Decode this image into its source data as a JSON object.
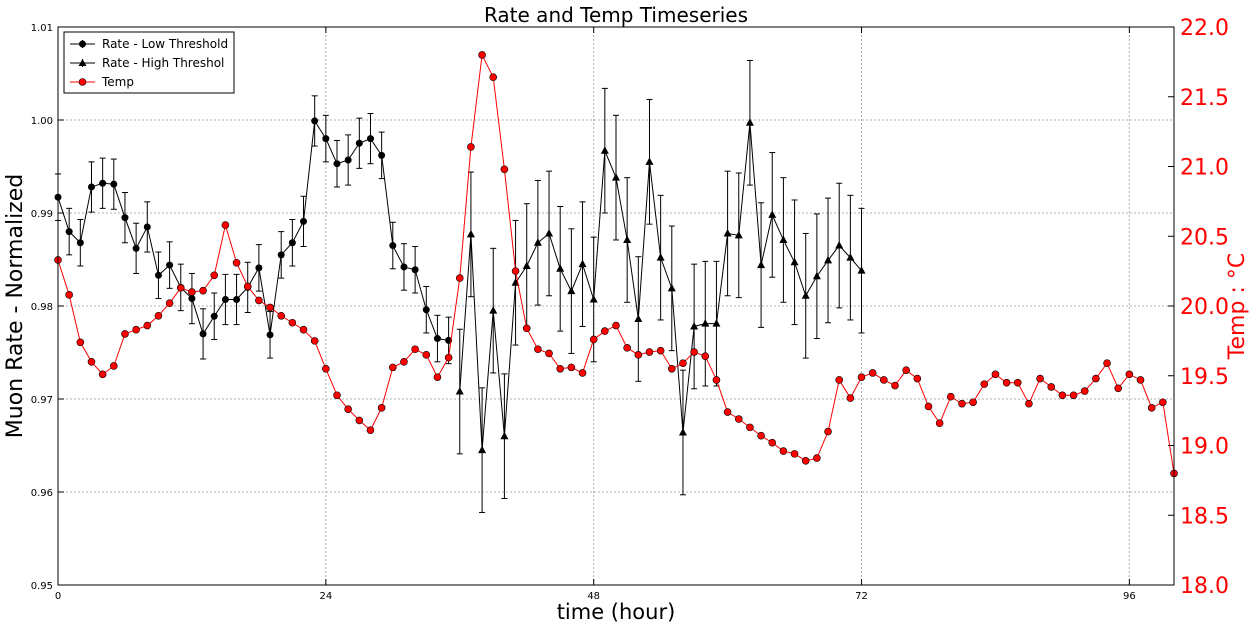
{
  "chart_data": {
    "type": "line",
    "title": "Rate and Temp Timeseries",
    "xlabel": "time (hour)",
    "ylabel": "Muon Rate - Normalized",
    "y2label": "Temp : °C",
    "xlim": [
      0,
      100
    ],
    "ylim": [
      0.95,
      1.01
    ],
    "y2lim": [
      18.0,
      22.0
    ],
    "xticks": [
      0,
      24,
      48,
      72,
      96
    ],
    "yticks": [
      0.95,
      0.96,
      0.97,
      0.98,
      0.99,
      1.0,
      1.01
    ],
    "yticks_labels": [
      "0.95",
      "0.96",
      "0.97",
      "0.98",
      "0.99",
      "1.00",
      "1.01"
    ],
    "y2ticks": [
      18.0,
      18.5,
      19.0,
      19.5,
      20.0,
      20.5,
      21.0,
      21.5,
      22.0
    ],
    "y2ticks_labels": [
      "18.0",
      "18.5",
      "19.0",
      "19.5",
      "20.0",
      "20.5",
      "21.0",
      "21.5",
      "22.0"
    ],
    "grid": true,
    "legend_position": "top-left",
    "colors": {
      "rate": "#000000",
      "temp": "#ff0000"
    },
    "series": [
      {
        "name": "Rate - Low Threshold",
        "axis": "left",
        "marker": "circle",
        "x": [
          0,
          1,
          2,
          3,
          4,
          5,
          6,
          7,
          8,
          9,
          10,
          11,
          12,
          13,
          14,
          15,
          16,
          17,
          18,
          19,
          20,
          21,
          22,
          23,
          24,
          25,
          26,
          27,
          28,
          29,
          30,
          31,
          32,
          33,
          34,
          35
        ],
        "y": [
          0.9917,
          0.988,
          0.9868,
          0.9928,
          0.9932,
          0.9931,
          0.9895,
          0.9862,
          0.9885,
          0.9833,
          0.9844,
          0.982,
          0.9808,
          0.977,
          0.9789,
          0.9807,
          0.9807,
          0.982,
          0.9841,
          0.9769,
          0.9855,
          0.9868,
          0.9891,
          0.9999,
          0.998,
          0.9953,
          0.9957,
          0.9975,
          0.998,
          0.9962,
          0.9865,
          0.9842,
          0.9839,
          0.9796,
          0.9765,
          0.9763
        ],
        "err": [
          0.0025,
          0.0025,
          0.0025,
          0.0027,
          0.0027,
          0.0027,
          0.0027,
          0.0027,
          0.0027,
          0.0025,
          0.0025,
          0.0025,
          0.0027,
          0.0027,
          0.0025,
          0.0027,
          0.0027,
          0.0027,
          0.0025,
          0.0025,
          0.0025,
          0.0025,
          0.0027,
          0.0027,
          0.0025,
          0.0025,
          0.0027,
          0.0027,
          0.0027,
          0.0025,
          0.0025,
          0.0025,
          0.0025,
          0.0025,
          0.0025,
          0.0025
        ]
      },
      {
        "name": "Rate - High Threshol",
        "axis": "left",
        "marker": "triangle",
        "x": [
          36,
          37,
          38,
          39,
          40,
          41,
          42,
          43,
          44,
          45,
          46,
          47,
          48,
          49,
          50,
          51,
          52,
          53,
          54,
          55,
          56,
          57,
          58,
          59,
          60,
          61,
          62,
          63,
          64,
          65,
          66,
          67,
          68,
          69,
          70,
          71,
          72
        ],
        "y": [
          0.9708,
          0.9877,
          0.9645,
          0.9795,
          0.966,
          0.9825,
          0.9843,
          0.9868,
          0.9878,
          0.984,
          0.9816,
          0.9845,
          0.9807,
          0.9967,
          0.9938,
          0.9871,
          0.9786,
          0.9955,
          0.9852,
          0.9819,
          0.9664,
          0.9778,
          0.9781,
          0.9781,
          0.9878,
          0.9876,
          0.9997,
          0.9844,
          0.9898,
          0.9871,
          0.9847,
          0.9811,
          0.9832,
          0.9849,
          0.9865,
          0.9852,
          0.9838
        ],
        "err": [
          0.0067,
          0.0067,
          0.0067,
          0.0067,
          0.0067,
          0.0067,
          0.0067,
          0.0067,
          0.0067,
          0.0067,
          0.0067,
          0.0067,
          0.0067,
          0.0067,
          0.0067,
          0.0067,
          0.0067,
          0.0067,
          0.0067,
          0.0067,
          0.0067,
          0.0067,
          0.0067,
          0.0067,
          0.0067,
          0.0067,
          0.0067,
          0.0067,
          0.0067,
          0.0067,
          0.0067,
          0.0067,
          0.0067,
          0.0067,
          0.0067,
          0.0067,
          0.0067
        ]
      },
      {
        "name": "Temp",
        "axis": "right",
        "marker": "circle",
        "x": [
          0,
          1,
          2,
          3,
          4,
          5,
          6,
          7,
          8,
          9,
          10,
          11,
          12,
          13,
          14,
          15,
          16,
          17,
          18,
          19,
          20,
          21,
          22,
          23,
          24,
          25,
          26,
          27,
          28,
          29,
          30,
          31,
          32,
          33,
          34,
          35,
          36,
          37,
          38,
          39,
          40,
          41,
          42,
          43,
          44,
          45,
          46,
          47,
          48,
          49,
          50,
          51,
          52,
          53,
          54,
          55,
          56,
          57,
          58,
          59,
          60,
          61,
          62,
          63,
          64,
          65,
          66,
          67,
          68,
          69,
          70,
          71,
          72,
          73,
          74,
          75,
          76,
          77,
          78,
          79,
          80,
          81,
          82,
          83,
          84,
          85,
          86,
          87,
          88,
          89,
          90,
          91,
          92,
          93,
          94,
          95,
          96,
          97,
          98,
          99,
          100
        ],
        "y": [
          20.33,
          20.08,
          19.74,
          19.6,
          19.51,
          19.57,
          19.8,
          19.83,
          19.86,
          19.93,
          20.02,
          20.13,
          20.1,
          20.11,
          20.22,
          20.58,
          20.31,
          20.14,
          20.04,
          19.99,
          19.93,
          19.88,
          19.83,
          19.75,
          19.55,
          19.36,
          19.26,
          19.18,
          19.11,
          19.27,
          19.56,
          19.6,
          19.69,
          19.65,
          19.49,
          19.63,
          20.2,
          21.14,
          21.8,
          21.64,
          20.98,
          20.25,
          19.84,
          19.69,
          19.66,
          19.55,
          19.56,
          19.52,
          19.76,
          19.82,
          19.86,
          19.7,
          19.65,
          19.67,
          19.68,
          19.55,
          19.59,
          19.67,
          19.64,
          19.47,
          19.24,
          19.19,
          19.13,
          19.07,
          19.02,
          18.96,
          18.94,
          18.89,
          18.91,
          19.1,
          19.47,
          19.34,
          19.49,
          19.52,
          19.47,
          19.43,
          19.54,
          19.48,
          19.28,
          19.16,
          19.35,
          19.3,
          19.31,
          19.44,
          19.51,
          19.45,
          19.45,
          19.3,
          19.48,
          19.42,
          19.36,
          19.36,
          19.39,
          19.48,
          19.59,
          19.41,
          19.51,
          19.47,
          19.27,
          19.31,
          18.8
        ]
      }
    ]
  }
}
